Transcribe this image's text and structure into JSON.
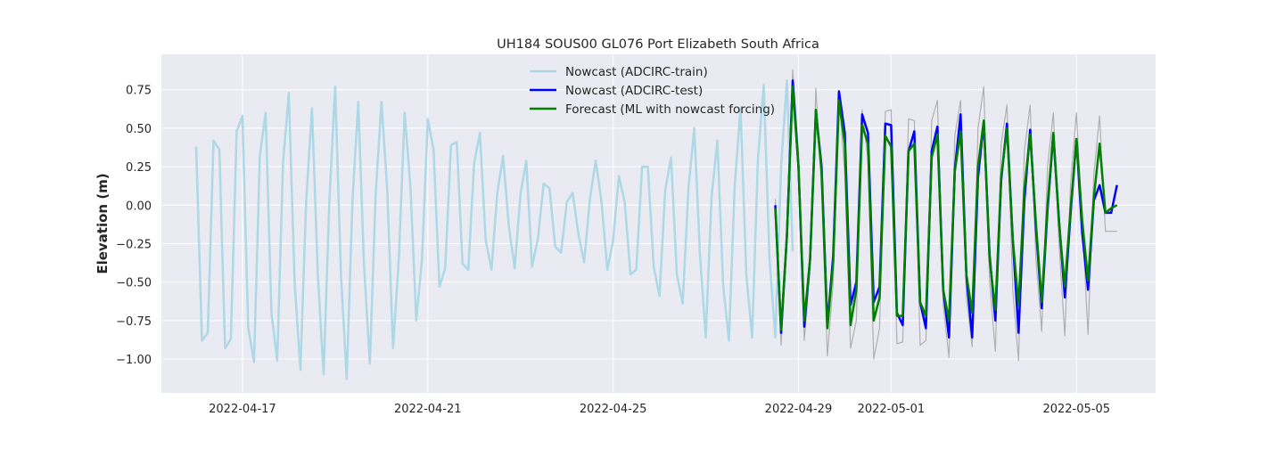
{
  "chart_data": {
    "type": "line",
    "title": "UH184 SOUS00 GL076 Port Elizabeth South Africa",
    "xlabel": "",
    "ylabel": "Elevation (m)",
    "x_axis": {
      "type": "date",
      "range": [
        "2022-04-15T06:00",
        "2022-05-06T17:00"
      ],
      "ticks": [
        "2022-04-17",
        "2022-04-21",
        "2022-04-25",
        "2022-04-29",
        "2022-05-01",
        "2022-05-05"
      ]
    },
    "y_axis": {
      "range": [
        -1.22,
        0.98
      ],
      "ticks": [
        0.75,
        0.5,
        0.25,
        0.0,
        -0.25,
        -0.5,
        -0.75,
        -1.0
      ],
      "tick_labels": [
        "0.75",
        "0.50",
        "0.25",
        "0.00",
        "−0.25",
        "−0.50",
        "−0.75",
        "−1.00"
      ]
    },
    "grid": true,
    "legend_position": "top-center",
    "colors": {
      "background": "#eaeaf2",
      "grid": "#ffffff",
      "train": "#add8e6",
      "test": "#0000ff",
      "forecast": "#008000",
      "observed": "#b0b0b0"
    },
    "series": [
      {
        "name": "Nowcast (ADCIRC-train)",
        "color": "#add8e6",
        "x": [
          "2022-04-16T00:00",
          "2022-04-16T03:00",
          "2022-04-16T06:00",
          "2022-04-16T09:00",
          "2022-04-16T12:00",
          "2022-04-16T15:00",
          "2022-04-16T18:00",
          "2022-04-16T21:00",
          "2022-04-17T00:00",
          "2022-04-17T03:00",
          "2022-04-17T06:00",
          "2022-04-17T09:00",
          "2022-04-17T12:00",
          "2022-04-17T15:00",
          "2022-04-17T18:00",
          "2022-04-17T21:00",
          "2022-04-18T00:00",
          "2022-04-18T03:00",
          "2022-04-18T06:00",
          "2022-04-18T09:00",
          "2022-04-18T12:00",
          "2022-04-18T15:00",
          "2022-04-18T18:00",
          "2022-04-18T21:00",
          "2022-04-19T00:00",
          "2022-04-19T03:00",
          "2022-04-19T06:00",
          "2022-04-19T09:00",
          "2022-04-19T12:00",
          "2022-04-19T15:00",
          "2022-04-19T18:00",
          "2022-04-19T21:00",
          "2022-04-20T00:00",
          "2022-04-20T03:00",
          "2022-04-20T06:00",
          "2022-04-20T09:00",
          "2022-04-20T12:00",
          "2022-04-20T15:00",
          "2022-04-20T18:00",
          "2022-04-20T21:00",
          "2022-04-21T00:00",
          "2022-04-21T03:00",
          "2022-04-21T06:00",
          "2022-04-21T09:00",
          "2022-04-21T12:00",
          "2022-04-21T15:00",
          "2022-04-21T18:00",
          "2022-04-21T21:00",
          "2022-04-22T00:00",
          "2022-04-22T03:00",
          "2022-04-22T06:00",
          "2022-04-22T09:00",
          "2022-04-22T12:00",
          "2022-04-22T15:00",
          "2022-04-22T18:00",
          "2022-04-22T21:00",
          "2022-04-23T00:00",
          "2022-04-23T03:00",
          "2022-04-23T06:00",
          "2022-04-23T09:00",
          "2022-04-23T12:00",
          "2022-04-23T15:00",
          "2022-04-23T18:00",
          "2022-04-23T21:00",
          "2022-04-24T00:00",
          "2022-04-24T03:00",
          "2022-04-24T06:00",
          "2022-04-24T09:00",
          "2022-04-24T12:00",
          "2022-04-24T15:00",
          "2022-04-24T18:00",
          "2022-04-24T21:00",
          "2022-04-25T00:00",
          "2022-04-25T03:00",
          "2022-04-25T06:00",
          "2022-04-25T09:00",
          "2022-04-25T12:00",
          "2022-04-25T15:00",
          "2022-04-25T18:00",
          "2022-04-25T21:00",
          "2022-04-26T00:00",
          "2022-04-26T03:00",
          "2022-04-26T06:00",
          "2022-04-26T09:00",
          "2022-04-26T12:00",
          "2022-04-26T15:00",
          "2022-04-26T18:00",
          "2022-04-26T21:00",
          "2022-04-27T00:00",
          "2022-04-27T03:00",
          "2022-04-27T06:00",
          "2022-04-27T09:00",
          "2022-04-27T12:00",
          "2022-04-27T15:00",
          "2022-04-27T18:00",
          "2022-04-27T21:00",
          "2022-04-28T00:00",
          "2022-04-28T03:00",
          "2022-04-28T06:00",
          "2022-04-28T09:00",
          "2022-04-28T12:00",
          "2022-04-28T15:00",
          "2022-04-28T18:00",
          "2022-04-28T21:00"
        ],
        "y": [
          0.38,
          -0.88,
          -0.83,
          0.42,
          0.36,
          -0.93,
          -0.87,
          0.48,
          0.58,
          -0.8,
          -1.02,
          0.32,
          0.6,
          -0.7,
          -1.01,
          0.27,
          0.73,
          -0.5,
          -1.07,
          0.03,
          0.63,
          -0.45,
          -1.1,
          0.03,
          0.77,
          -0.44,
          -1.13,
          0.03,
          0.67,
          -0.4,
          -1.03,
          0.07,
          0.67,
          0.1,
          -0.93,
          -0.35,
          0.6,
          0.12,
          -0.75,
          -0.35,
          0.56,
          0.36,
          -0.53,
          -0.41,
          0.39,
          0.41,
          -0.38,
          -0.42,
          0.27,
          0.47,
          -0.23,
          -0.42,
          0.08,
          0.32,
          -0.14,
          -0.41,
          0.07,
          0.29,
          -0.4,
          -0.22,
          0.14,
          0.11,
          -0.27,
          -0.31,
          0.02,
          0.08,
          -0.19,
          -0.37,
          0.04,
          0.29,
          0.02,
          -0.42,
          -0.23,
          0.19,
          0.02,
          -0.45,
          -0.42,
          0.25,
          0.25,
          -0.4,
          -0.59,
          0.1,
          0.31,
          -0.45,
          -0.64,
          0.11,
          0.5,
          -0.32,
          -0.86,
          0.05,
          0.42,
          -0.52,
          -0.88,
          0.13,
          0.63,
          -0.45,
          -0.86,
          0.3,
          0.78,
          -0.35,
          -0.86,
          0.25,
          0.81,
          -0.3
        ]
      },
      {
        "name": "Nowcast (ADCIRC-test)",
        "color": "#0000ff",
        "x": [
          "2022-04-28T12:00",
          "2022-04-28T15:00",
          "2022-04-28T18:00",
          "2022-04-28T21:00",
          "2022-04-29T00:00",
          "2022-04-29T03:00",
          "2022-04-29T06:00",
          "2022-04-29T09:00",
          "2022-04-29T12:00",
          "2022-04-29T15:00",
          "2022-04-29T18:00",
          "2022-04-29T21:00",
          "2022-04-30T00:00",
          "2022-04-30T03:00",
          "2022-04-30T06:00",
          "2022-04-30T09:00",
          "2022-04-30T12:00",
          "2022-04-30T15:00",
          "2022-04-30T18:00",
          "2022-04-30T21:00",
          "2022-05-01T00:00",
          "2022-05-01T03:00",
          "2022-05-01T06:00",
          "2022-05-01T09:00",
          "2022-05-01T12:00",
          "2022-05-01T15:00",
          "2022-05-01T18:00",
          "2022-05-01T21:00",
          "2022-05-02T00:00",
          "2022-05-02T03:00",
          "2022-05-02T06:00",
          "2022-05-02T09:00",
          "2022-05-02T12:00",
          "2022-05-02T15:00",
          "2022-05-02T18:00",
          "2022-05-02T21:00",
          "2022-05-03T00:00",
          "2022-05-03T03:00",
          "2022-05-03T06:00",
          "2022-05-03T09:00",
          "2022-05-03T12:00",
          "2022-05-03T15:00",
          "2022-05-03T18:00",
          "2022-05-03T21:00",
          "2022-05-04T00:00",
          "2022-05-04T03:00",
          "2022-05-04T06:00",
          "2022-05-04T09:00",
          "2022-05-04T12:00",
          "2022-05-04T15:00",
          "2022-05-04T18:00",
          "2022-05-04T21:00",
          "2022-05-05T00:00",
          "2022-05-05T03:00",
          "2022-05-05T06:00",
          "2022-05-05T09:00",
          "2022-05-05T12:00",
          "2022-05-05T15:00",
          "2022-05-05T18:00",
          "2022-05-05T21:00"
        ],
        "y": [
          0.0,
          -0.83,
          -0.2,
          0.81,
          0.25,
          -0.79,
          -0.35,
          0.61,
          0.25,
          -0.78,
          -0.33,
          0.74,
          0.47,
          -0.65,
          -0.5,
          0.59,
          0.47,
          -0.63,
          -0.53,
          0.53,
          0.52,
          -0.7,
          -0.78,
          0.35,
          0.48,
          -0.63,
          -0.8,
          0.35,
          0.51,
          -0.55,
          -0.86,
          0.23,
          0.59,
          -0.46,
          -0.86,
          0.18,
          0.54,
          -0.32,
          -0.75,
          0.16,
          0.53,
          -0.22,
          -0.83,
          0.03,
          0.49,
          -0.15,
          -0.67,
          -0.03,
          0.46,
          -0.1,
          -0.6,
          -0.05,
          0.43,
          -0.18,
          -0.55,
          0.03,
          0.13,
          -0.05,
          -0.05,
          0.13
        ]
      },
      {
        "name": "Forecast (ML with nowcast forcing)",
        "color": "#008000",
        "x": [
          "2022-04-28T12:00",
          "2022-04-28T15:00",
          "2022-04-28T18:00",
          "2022-04-28T21:00",
          "2022-04-29T00:00",
          "2022-04-29T03:00",
          "2022-04-29T06:00",
          "2022-04-29T09:00",
          "2022-04-29T12:00",
          "2022-04-29T15:00",
          "2022-04-29T18:00",
          "2022-04-29T21:00",
          "2022-04-30T00:00",
          "2022-04-30T03:00",
          "2022-04-30T06:00",
          "2022-04-30T09:00",
          "2022-04-30T12:00",
          "2022-04-30T15:00",
          "2022-04-30T18:00",
          "2022-04-30T21:00",
          "2022-05-01T00:00",
          "2022-05-01T03:00",
          "2022-05-01T06:00",
          "2022-05-01T09:00",
          "2022-05-01T12:00",
          "2022-05-01T15:00",
          "2022-05-01T18:00",
          "2022-05-01T21:00",
          "2022-05-02T00:00",
          "2022-05-02T03:00",
          "2022-05-02T06:00",
          "2022-05-02T09:00",
          "2022-05-02T12:00",
          "2022-05-02T15:00",
          "2022-05-02T18:00",
          "2022-05-02T21:00",
          "2022-05-03T00:00",
          "2022-05-03T03:00",
          "2022-05-03T06:00",
          "2022-05-03T09:00",
          "2022-05-03T12:00",
          "2022-05-03T15:00",
          "2022-05-03T18:00",
          "2022-05-03T21:00",
          "2022-05-04T00:00",
          "2022-05-04T03:00",
          "2022-05-04T06:00",
          "2022-05-04T09:00",
          "2022-05-04T12:00",
          "2022-05-04T15:00",
          "2022-05-04T18:00",
          "2022-05-04T21:00",
          "2022-05-05T00:00",
          "2022-05-05T03:00",
          "2022-05-05T06:00",
          "2022-05-05T09:00",
          "2022-05-05T12:00",
          "2022-05-05T15:00",
          "2022-05-05T18:00",
          "2022-05-05T21:00"
        ],
        "y": [
          -0.02,
          -0.81,
          -0.2,
          0.77,
          0.25,
          -0.75,
          -0.35,
          0.62,
          0.22,
          -0.8,
          -0.37,
          0.68,
          0.4,
          -0.78,
          -0.55,
          0.52,
          0.4,
          -0.75,
          -0.6,
          0.45,
          0.38,
          -0.72,
          -0.72,
          0.35,
          0.4,
          -0.63,
          -0.72,
          0.31,
          0.46,
          -0.55,
          -0.75,
          0.22,
          0.48,
          -0.45,
          -0.7,
          0.25,
          0.55,
          -0.35,
          -0.68,
          0.18,
          0.5,
          -0.22,
          -0.65,
          0.1,
          0.46,
          -0.12,
          -0.63,
          0.0,
          0.47,
          -0.12,
          -0.53,
          -0.02,
          0.43,
          -0.1,
          -0.49,
          0.05,
          0.4,
          -0.05,
          -0.02,
          0.0
        ]
      },
      {
        "color": "#b0b0b0",
        "x": [
          "2022-04-28T12:00",
          "2022-04-28T15:00",
          "2022-04-28T18:00",
          "2022-04-28T21:00",
          "2022-04-29T00:00",
          "2022-04-29T03:00",
          "2022-04-29T06:00",
          "2022-04-29T09:00",
          "2022-04-29T12:00",
          "2022-04-29T15:00",
          "2022-04-29T18:00",
          "2022-04-29T21:00",
          "2022-04-30T00:00",
          "2022-04-30T03:00",
          "2022-04-30T06:00",
          "2022-04-30T09:00",
          "2022-04-30T12:00",
          "2022-04-30T15:00",
          "2022-04-30T18:00",
          "2022-04-30T21:00",
          "2022-05-01T00:00",
          "2022-05-01T03:00",
          "2022-05-01T06:00",
          "2022-05-01T09:00",
          "2022-05-01T12:00",
          "2022-05-01T15:00",
          "2022-05-01T18:00",
          "2022-05-01T21:00",
          "2022-05-02T00:00",
          "2022-05-02T03:00",
          "2022-05-02T06:00",
          "2022-05-02T09:00",
          "2022-05-02T12:00",
          "2022-05-02T15:00",
          "2022-05-02T18:00",
          "2022-05-02T21:00",
          "2022-05-03T00:00",
          "2022-05-03T03:00",
          "2022-05-03T06:00",
          "2022-05-03T09:00",
          "2022-05-03T12:00",
          "2022-05-03T15:00",
          "2022-05-03T18:00",
          "2022-05-03T21:00",
          "2022-05-04T00:00",
          "2022-05-04T03:00",
          "2022-05-04T06:00",
          "2022-05-04T09:00",
          "2022-05-04T12:00",
          "2022-05-04T15:00",
          "2022-05-04T18:00",
          "2022-05-04T21:00",
          "2022-05-05T00:00",
          "2022-05-05T03:00",
          "2022-05-05T06:00",
          "2022-05-05T09:00",
          "2022-05-05T12:00",
          "2022-05-05T15:00",
          "2022-05-05T18:00",
          "2022-05-05T21:00"
        ],
        "y": [
          0.04,
          -0.91,
          -0.22,
          0.88,
          0.35,
          -0.88,
          -0.42,
          0.76,
          0.1,
          -0.98,
          -0.5,
          0.72,
          0.2,
          -0.93,
          -0.75,
          0.62,
          0.3,
          -1.0,
          -0.8,
          0.61,
          0.62,
          -0.9,
          -0.89,
          0.56,
          0.55,
          -0.91,
          -0.88,
          0.55,
          0.68,
          -0.65,
          -0.99,
          0.45,
          0.68,
          -0.6,
          -0.92,
          0.5,
          0.77,
          -0.5,
          -0.95,
          0.4,
          0.65,
          -0.55,
          -1.01,
          0.35,
          0.65,
          -0.35,
          -0.82,
          0.25,
          0.6,
          -0.25,
          -0.85,
          0.15,
          0.6,
          -0.1,
          -0.84,
          0.2,
          0.58,
          -0.17,
          -0.17,
          -0.17
        ]
      }
    ]
  }
}
